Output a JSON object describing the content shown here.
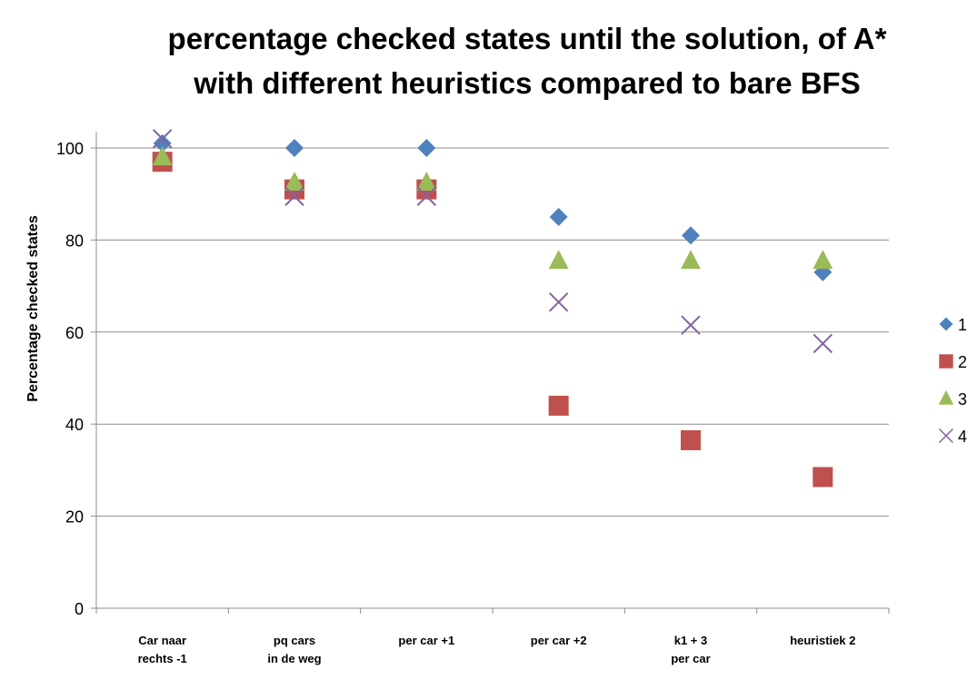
{
  "chart_data": {
    "type": "scatter",
    "title_lines": [
      "percentage checked states until the solution, of A*",
      "with different heuristics compared to bare BFS"
    ],
    "xlabel": "",
    "ylabel": "Percentage checked states",
    "ylim": [
      0,
      100
    ],
    "yticks": [
      0,
      20,
      40,
      60,
      80,
      100
    ],
    "categories": [
      [
        "Car naar",
        "rechts -1"
      ],
      [
        "pq cars",
        "in de weg"
      ],
      [
        "per car +1"
      ],
      [
        "per car +2"
      ],
      [
        "k1 + 3",
        "per car"
      ],
      [
        "heuristiek 2"
      ]
    ],
    "grid": true,
    "legend_position": "right",
    "series": [
      {
        "name": "1",
        "marker": "diamond",
        "color": "#4f81bd",
        "values": [
          101,
          100,
          100,
          85,
          81,
          73
        ]
      },
      {
        "name": "2",
        "marker": "square",
        "color": "#c0504d",
        "values": [
          97,
          91,
          91,
          44,
          36.5,
          28.5
        ]
      },
      {
        "name": "3",
        "marker": "triangle",
        "color": "#9bbb59",
        "values": [
          98,
          92.5,
          92.5,
          75.5,
          75.5,
          75.5
        ]
      },
      {
        "name": "4",
        "marker": "x",
        "color": "#8064a2",
        "values": [
          102,
          89.5,
          89.5,
          66.5,
          61.5,
          57.5
        ]
      }
    ]
  }
}
